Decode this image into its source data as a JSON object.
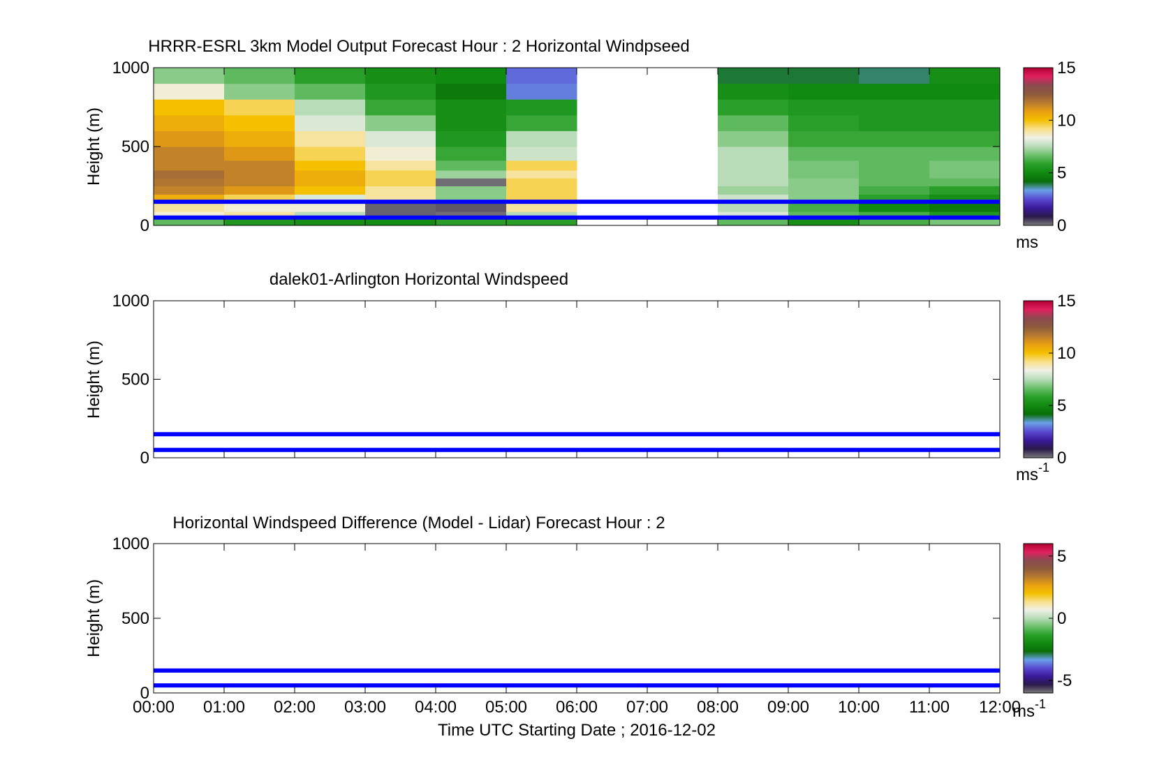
{
  "figure": {
    "xlabel": "Time UTC  Starting Date ; 2016-12-02",
    "xticks": [
      "00:00",
      "01:00",
      "02:00",
      "03:00",
      "04:00",
      "05:00",
      "06:00",
      "07:00",
      "08:00",
      "09:00",
      "10:00",
      "11:00",
      "12:00"
    ]
  },
  "colormaps": {
    "windspeed": [
      "#7a7a7a",
      "#2a1a4a",
      "#3a1a9a",
      "#5a4ad0",
      "#6aa0e8",
      "#0a6e0a",
      "#118a11",
      "#2aa02a",
      "#6cc06c",
      "#b8dcb8",
      "#f0f0e8",
      "#f8e08a",
      "#f5c000",
      "#e8a010",
      "#b87a30",
      "#8c5a3c",
      "#8c4a50",
      "#e02060",
      "#b00030"
    ],
    "difference": [
      "#7a7a7a",
      "#2a1a4a",
      "#3a1a9a",
      "#5a4ad0",
      "#6aa0e8",
      "#0a6e0a",
      "#118a11",
      "#2aa02a",
      "#6cc06c",
      "#b8dcb8",
      "#f0f0e8",
      "#f8e08a",
      "#f5c000",
      "#e8a010",
      "#b87a30",
      "#8c5a3c",
      "#8c4a50",
      "#e02060",
      "#b00030"
    ]
  },
  "chart_data": [
    {
      "type": "heatmap",
      "title": "HRRR-ESRL 3km Model Output   Forecast Hour : 2 Horizontal Windpseed",
      "xlabel": "",
      "ylabel": "Height (m)",
      "xlim": [
        0,
        12
      ],
      "ylim": [
        0,
        1000
      ],
      "yticks": [
        "0",
        "500",
        "1000"
      ],
      "colorbar": {
        "ticks": [
          "0",
          "5",
          "10",
          "15"
        ],
        "range": [
          0,
          15
        ],
        "units": "ms"
      },
      "x_columns": [
        "00:00-01:00",
        "01:00-02:00",
        "02:00-03:00",
        "03:00-04:00",
        "04:00-05:00",
        "05:00-06:00",
        "06:00-07:00",
        "07:00-08:00",
        "08:00-09:00",
        "09:00-10:00",
        "10:00-11:00",
        "11:00-12:00"
      ],
      "y_levels": [
        20,
        60,
        115,
        170,
        225,
        275,
        325,
        375,
        450,
        550,
        650,
        750,
        850,
        950
      ],
      "values": [
        [
          6.5,
          5.5,
          5.2,
          5.1,
          5.8,
          5.8,
          null,
          null,
          6.5,
          5.2,
          6.2,
          6.8
        ],
        [
          8.5,
          9.0,
          7.5,
          0.2,
          0.1,
          7.5,
          null,
          null,
          8.0,
          6.5,
          6.2,
          5.5
        ],
        [
          9.0,
          8.5,
          8.5,
          0.2,
          0.3,
          9.0,
          null,
          null,
          7.5,
          6.2,
          5.0,
          4.5
        ],
        [
          10.5,
          9.5,
          8.0,
          9.0,
          7.0,
          9.5,
          null,
          null,
          7.8,
          7.0,
          5.8,
          5.2
        ],
        [
          11.5,
          11.0,
          10.0,
          9.0,
          7.0,
          9.5,
          null,
          null,
          7.2,
          7.0,
          6.2,
          5.8
        ],
        [
          11.8,
          11.5,
          10.5,
          9.5,
          0.1,
          9.5,
          null,
          null,
          7.5,
          7.0,
          6.5,
          6.5
        ],
        [
          12.0,
          11.5,
          10.5,
          9.5,
          7.2,
          9.0,
          null,
          null,
          7.5,
          6.8,
          6.5,
          6.8
        ],
        [
          11.5,
          11.5,
          10.0,
          9.0,
          6.5,
          9.5,
          null,
          null,
          7.5,
          6.8,
          6.5,
          6.8
        ],
        [
          11.5,
          11.0,
          9.5,
          8.5,
          6.0,
          7.8,
          null,
          null,
          7.5,
          6.5,
          6.5,
          6.5
        ],
        [
          11.0,
          10.5,
          9.0,
          8.0,
          5.5,
          7.5,
          null,
          null,
          7.0,
          6.0,
          6.0,
          6.0
        ],
        [
          10.5,
          10.0,
          8.0,
          7.0,
          5.2,
          6.0,
          null,
          null,
          6.5,
          5.8,
          5.5,
          5.5
        ],
        [
          10.0,
          9.5,
          7.5,
          6.0,
          5.2,
          5.5,
          null,
          null,
          5.8,
          5.5,
          5.5,
          5.5
        ],
        [
          8.5,
          7.0,
          6.5,
          5.5,
          4.5,
          3.0,
          null,
          null,
          5.2,
          5.0,
          5.0,
          5.0
        ],
        [
          7.0,
          6.5,
          5.8,
          5.2,
          5.0,
          2.8,
          null,
          null,
          4.0,
          4.0,
          3.8,
          5.2
        ]
      ],
      "reference_lines_m": [
        150,
        50
      ]
    },
    {
      "type": "heatmap",
      "title": "dalek01-Arlington  Horizontal Windspeed",
      "xlabel": "",
      "ylabel": "Height (m)",
      "xlim": [
        0,
        12
      ],
      "ylim": [
        0,
        1000
      ],
      "yticks": [
        "0",
        "500",
        "1000"
      ],
      "colorbar": {
        "ticks": [
          "0",
          "5",
          "10",
          "15"
        ],
        "range": [
          0,
          15
        ],
        "units": "ms",
        "units_sup": "-1"
      },
      "values": [],
      "reference_lines_m": [
        150,
        50
      ]
    },
    {
      "type": "heatmap",
      "title": "Horizontal Windspeed Difference (Model - Lidar) Forecast Hour : 2",
      "xlabel": "Time UTC  Starting Date ; 2016-12-02",
      "ylabel": "Height (m)",
      "xlim": [
        0,
        12
      ],
      "ylim": [
        0,
        1000
      ],
      "yticks": [
        "0",
        "500",
        "1000"
      ],
      "colorbar": {
        "ticks": [
          "-5",
          "0",
          "5"
        ],
        "range": [
          -6,
          6
        ],
        "units": "ms",
        "units_sup": "-1"
      },
      "values": [],
      "reference_lines_m": [
        150,
        50
      ]
    }
  ]
}
